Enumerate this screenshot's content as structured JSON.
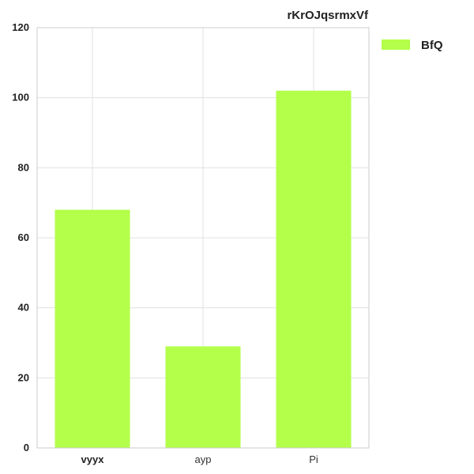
{
  "chart_data": {
    "type": "bar",
    "title": "rKrOJqsrmxVf",
    "xlabel": "",
    "ylabel": "",
    "categories": [
      "vyyx",
      "ayp",
      "Pi"
    ],
    "series": [
      {
        "name": "BfQ",
        "values": [
          68,
          29,
          102
        ],
        "color": "#b3ff4a"
      }
    ],
    "ylim": [
      0,
      120
    ],
    "yticks": [
      0,
      20,
      40,
      60,
      80,
      100,
      120
    ],
    "grid": true,
    "legend_position": "right-top"
  }
}
